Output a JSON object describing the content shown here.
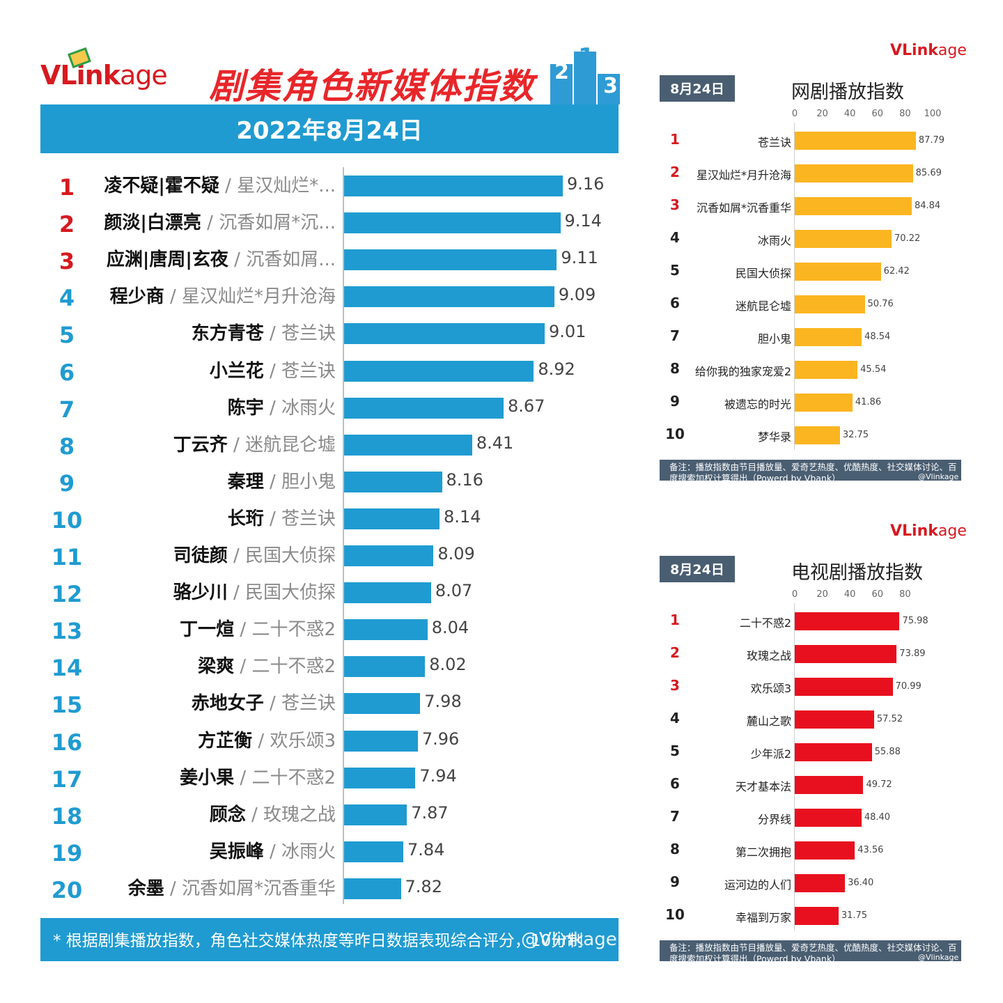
{
  "left": {
    "logo": {
      "v": "VL",
      "ink": "ink",
      "kage": "age"
    },
    "title": "剧集角色新媒体指数",
    "podium_numbers": [
      "2",
      "1",
      "3"
    ],
    "date": "2022年8月24日",
    "footer": "* 根据剧集播放指数，角色社交媒体热度等昨日数据表现综合评分，10分制",
    "watermark": "@Vlinkage",
    "colors": {
      "bar": "#1f9bd1",
      "rank_top": "#d71920",
      "rank_rest": "#1f9bd1"
    }
  },
  "web": {
    "logo": {
      "v": "VL",
      "ink": "ink",
      "kage": "age"
    },
    "date": "8月24日",
    "title": "网剧播放指数",
    "note": "备注：播放指数由节目播放量、爱奇艺热度、优酷热度、社交媒体讨论、百度搜索加权计算得出（Powerd by Vbank）",
    "watermark": "@Vlinkage",
    "color": "#fbb521"
  },
  "tv": {
    "logo": {
      "v": "VL",
      "ink": "ink",
      "kage": "age"
    },
    "date": "8月24日",
    "title": "电视剧播放指数",
    "note": "备注：播放指数由节目播放量、爱奇艺热度、优酷热度、社交媒体讨论、百度搜索加权计算得出（Powerd by Vbank）",
    "watermark": "@Vlinkage",
    "color": "#e8101e"
  },
  "chart_data": [
    {
      "type": "bar",
      "orientation": "horizontal",
      "title": "剧集角色新媒体指数",
      "subtitle": "2022年8月24日",
      "ranks": [
        "1",
        "2",
        "3",
        "4",
        "5",
        "6",
        "7",
        "8",
        "9",
        "10",
        "11",
        "12",
        "13",
        "14",
        "15",
        "16",
        "17",
        "18",
        "19",
        "20"
      ],
      "characters": [
        "凌不疑|霍不疑",
        "颜淡|白漂亮",
        "应渊|唐周|玄夜",
        "程少商",
        "东方青苍",
        "小兰花",
        "陈宇",
        "丁云齐",
        "秦理",
        "长珩",
        "司徒颜",
        "骆少川",
        "丁一煊",
        "梁爽",
        "赤地女子",
        "方芷衡",
        "姜小果",
        "顾念",
        "吴振峰",
        "余墨"
      ],
      "dramas": [
        "/ 星汉灿烂*...",
        "/ 沉香如屑*沉...",
        "/ 沉香如屑...",
        "/ 星汉灿烂*月升沧海",
        "/ 苍兰诀",
        "/ 苍兰诀",
        "/ 冰雨火",
        "/ 迷航昆仑墟",
        "/ 胆小鬼",
        "/ 苍兰诀",
        "/ 民国大侦探",
        "/ 民国大侦探",
        "/ 二十不惑2",
        "/ 二十不惑2",
        "/ 苍兰诀",
        "/ 欢乐颂3",
        "/ 二十不惑2",
        "/ 玫瑰之战",
        "/ 冰雨火",
        "/ 沉香如屑*沉香重华"
      ],
      "values": [
        9.16,
        9.14,
        9.11,
        9.09,
        9.01,
        8.92,
        8.67,
        8.41,
        8.16,
        8.14,
        8.09,
        8.07,
        8.04,
        8.02,
        7.98,
        7.96,
        7.94,
        7.87,
        7.84,
        7.82
      ],
      "value_labels": [
        "9.16",
        "9.14",
        "9.11",
        "9.09",
        "9.01",
        "8.92",
        "8.67",
        "8.41",
        "8.16",
        "8.14",
        "8.09",
        "8.07",
        "8.04",
        "8.02",
        "7.98",
        "7.96",
        "7.94",
        "7.87",
        "7.84",
        "7.82"
      ],
      "xlim": [
        7.35,
        9.16
      ]
    },
    {
      "type": "bar",
      "orientation": "horizontal",
      "title": "网剧播放指数",
      "ranks": [
        "1",
        "2",
        "3",
        "4",
        "5",
        "6",
        "7",
        "8",
        "9",
        "10"
      ],
      "categories": [
        "苍兰诀",
        "星汉灿烂*月升沧海",
        "沉香如屑*沉香重华",
        "冰雨火",
        "民国大侦探",
        "迷航昆仑墟",
        "胆小鬼",
        "给你我的独家宠爱2",
        "被遗忘的时光",
        "梦华录"
      ],
      "values": [
        87.79,
        85.69,
        84.84,
        70.22,
        62.42,
        50.76,
        48.54,
        45.54,
        41.86,
        32.75
      ],
      "value_labels": [
        "87.79",
        "85.69",
        "84.84",
        "70.22",
        "62.42",
        "50.76",
        "48.54",
        "45.54",
        "41.86",
        "32.75"
      ],
      "xticks": [
        "0",
        "20",
        "40",
        "60",
        "80",
        "100"
      ],
      "xlim": [
        0,
        100
      ]
    },
    {
      "type": "bar",
      "orientation": "horizontal",
      "title": "电视剧播放指数",
      "ranks": [
        "1",
        "2",
        "3",
        "4",
        "5",
        "6",
        "7",
        "8",
        "9",
        "10"
      ],
      "categories": [
        "二十不惑2",
        "玫瑰之战",
        "欢乐颂3",
        "麓山之歌",
        "少年派2",
        "天才基本法",
        "分界线",
        "第二次拥抱",
        "运河边的人们",
        "幸福到万家"
      ],
      "values": [
        75.98,
        73.89,
        70.99,
        57.52,
        55.88,
        49.72,
        48.4,
        43.56,
        36.4,
        31.75
      ],
      "value_labels": [
        "75.98",
        "73.89",
        "70.99",
        "57.52",
        "55.88",
        "49.72",
        "48.40",
        "43.56",
        "36.40",
        "31.75"
      ],
      "xticks": [
        "0",
        "20",
        "40",
        "60",
        "80"
      ],
      "xlim": [
        0,
        80
      ]
    }
  ]
}
